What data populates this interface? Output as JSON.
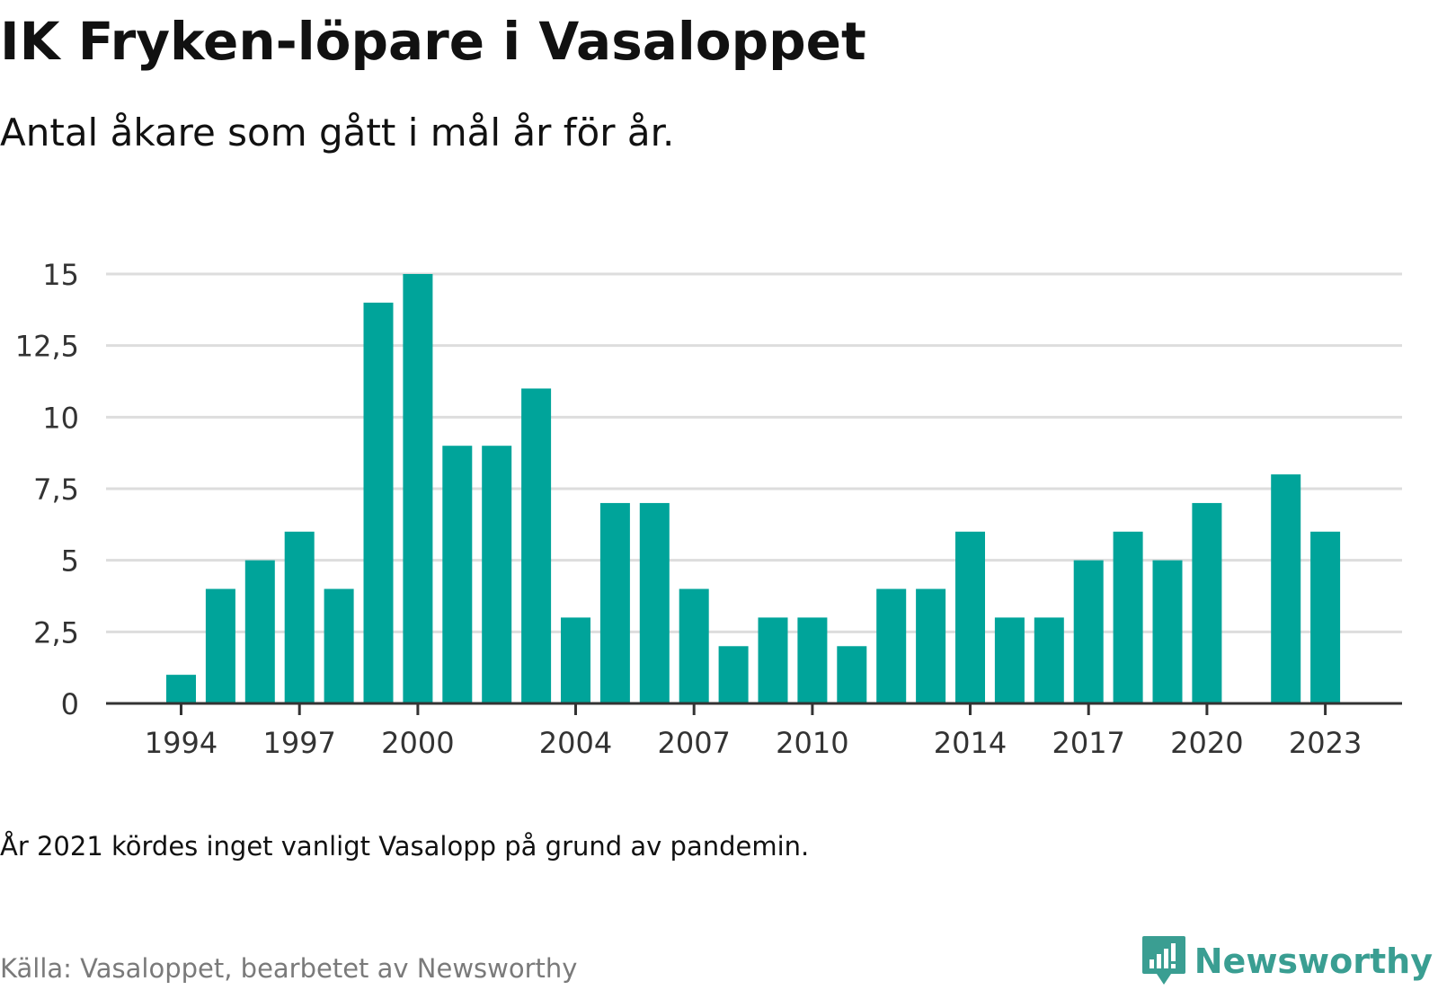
{
  "header": {
    "title": "IK Fryken-löpare i Vasaloppet",
    "subtitle": "Antal åkare som gått i mål år för år."
  },
  "footer": {
    "note": "År 2021 kördes inget vanligt Vasalopp på grund av pandemin.",
    "source": "Källa: Vasaloppet, bearbetet av Newsworthy",
    "brand_name": "Newsworthy",
    "brand_icon": "bar-chart-speech-bubble-icon"
  },
  "colors": {
    "bar": "#00a49a",
    "grid": "#dddddd",
    "axis": "#333333",
    "brand": "#3a9e92"
  },
  "chart_data": {
    "type": "bar",
    "title": "IK Fryken-löpare i Vasaloppet",
    "subtitle": "Antal åkare som gått i mål år för år.",
    "xlabel": "",
    "ylabel": "",
    "x": [
      1994,
      1995,
      1996,
      1997,
      1998,
      1999,
      2000,
      2001,
      2002,
      2003,
      2004,
      2005,
      2006,
      2007,
      2008,
      2009,
      2010,
      2011,
      2012,
      2013,
      2014,
      2015,
      2016,
      2017,
      2018,
      2019,
      2020,
      2021,
      2022,
      2023
    ],
    "values": [
      1,
      4,
      5,
      6,
      4,
      14,
      15,
      9,
      9,
      11,
      3,
      7,
      7,
      4,
      2,
      3,
      3,
      2,
      4,
      4,
      6,
      3,
      3,
      5,
      6,
      5,
      7,
      null,
      8,
      6
    ],
    "x_ticks": [
      1994,
      1997,
      2000,
      2004,
      2007,
      2010,
      2014,
      2017,
      2020,
      2023
    ],
    "y_ticks": [
      0,
      2.5,
      5,
      7.5,
      10,
      12.5,
      15
    ],
    "y_tick_labels": [
      "0",
      "2,5",
      "5",
      "7,5",
      "10",
      "12,5",
      "15"
    ],
    "ylim": [
      0,
      15
    ],
    "grid": true,
    "legend": "none"
  }
}
